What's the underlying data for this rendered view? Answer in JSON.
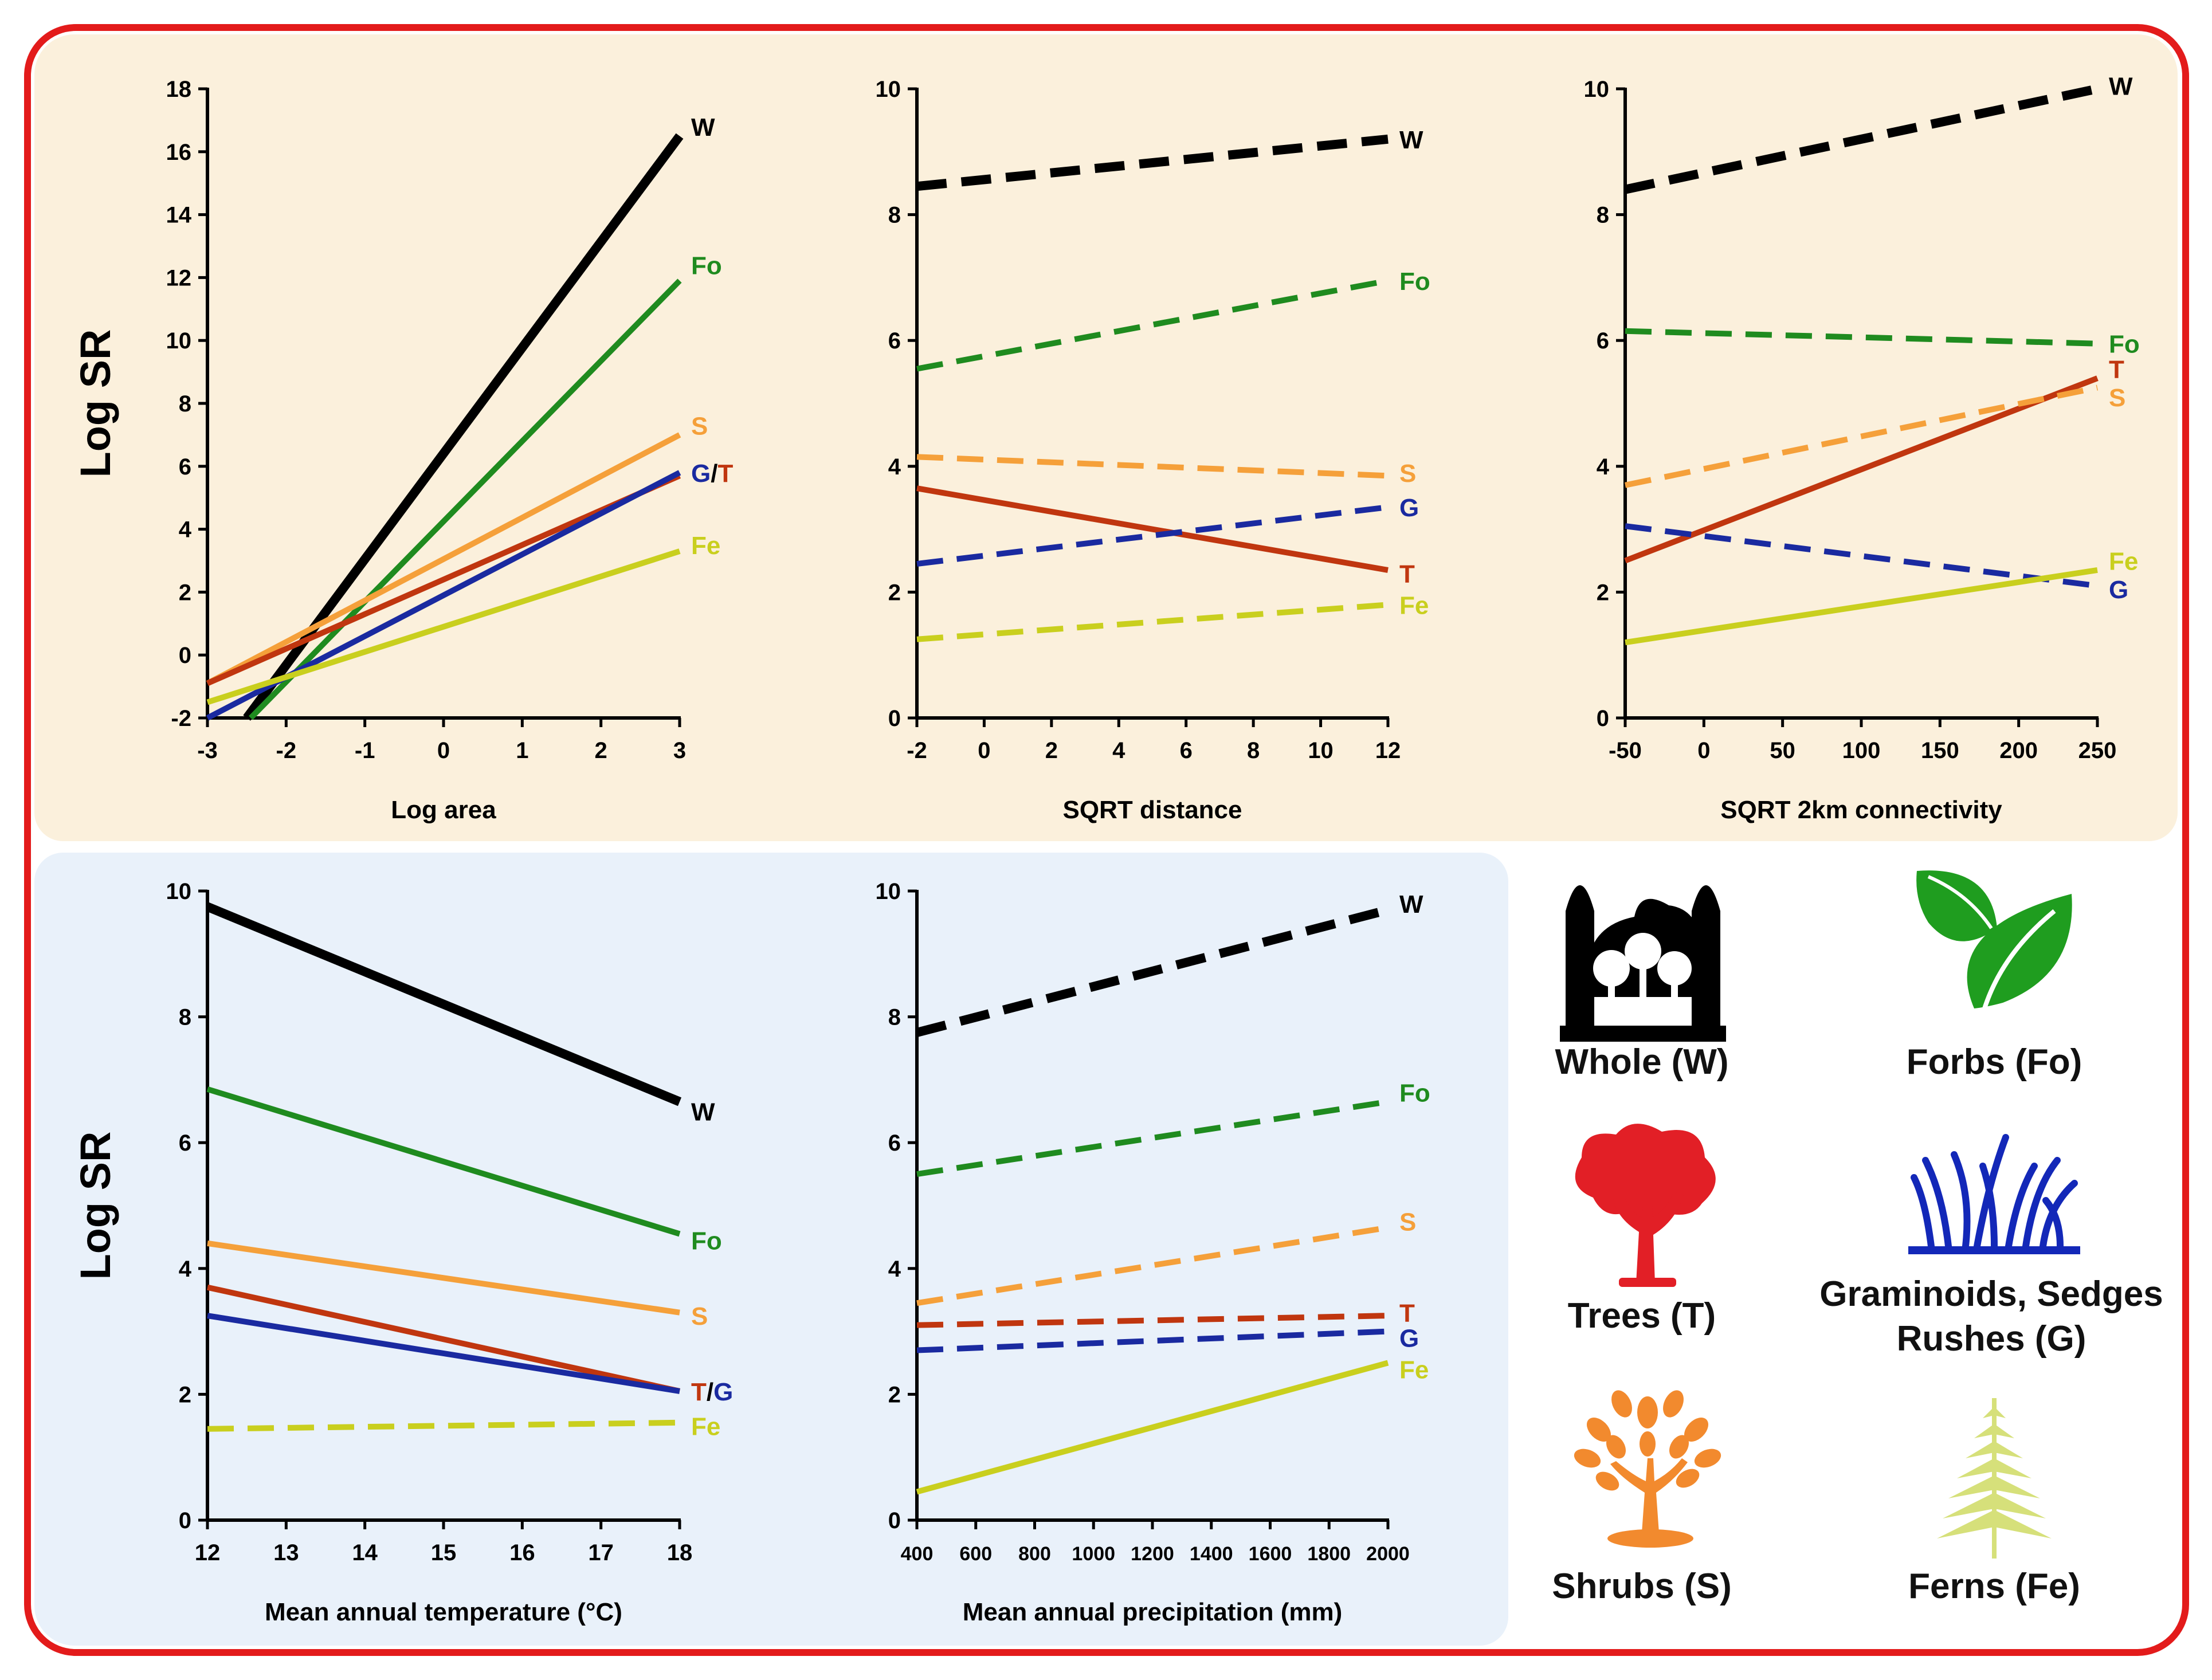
{
  "colors": {
    "W": "#000000",
    "Fo": "#1f8b1f",
    "S": "#f5a03a",
    "T": "#c0360f",
    "G": "#1a2aa0",
    "Fe": "#c9cf1e",
    "frame": "#e31b1b"
  },
  "chart_data": [
    {
      "type": "line",
      "panel": "top-left",
      "xlabel": "Log area",
      "ylabel": "Log SR",
      "xlim": [
        -3,
        3
      ],
      "ylim": [
        -2,
        18
      ],
      "xticks": [
        -3,
        -2,
        -1,
        0,
        1,
        2,
        3
      ],
      "yticks": [
        -2,
        0,
        2,
        4,
        6,
        8,
        10,
        12,
        14,
        16,
        18
      ],
      "series": [
        {
          "key": "W",
          "x": [
            -2.5,
            3
          ],
          "y": [
            -2,
            16.5
          ],
          "dashed": false
        },
        {
          "key": "Fo",
          "x": [
            -2.45,
            3
          ],
          "y": [
            -2,
            11.9
          ],
          "dashed": false
        },
        {
          "key": "S",
          "x": [
            -3,
            3
          ],
          "y": [
            -0.9,
            7.0
          ],
          "dashed": false
        },
        {
          "key": "T",
          "x": [
            -3,
            3
          ],
          "y": [
            -0.9,
            5.7
          ],
          "dashed": false
        },
        {
          "key": "G",
          "x": [
            -3,
            3
          ],
          "y": [
            -2,
            5.8
          ],
          "dashed": false
        },
        {
          "key": "Fe",
          "x": [
            -3,
            3
          ],
          "y": [
            -1.5,
            3.3
          ],
          "dashed": false
        }
      ],
      "labels": [
        {
          "parts": [
            {
              "t": "W",
              "c": "W"
            }
          ],
          "x": 3,
          "y": 16.8
        },
        {
          "parts": [
            {
              "t": "Fo",
              "c": "Fo"
            }
          ],
          "x": 3,
          "y": 12.4
        },
        {
          "parts": [
            {
              "t": "S",
              "c": "S"
            }
          ],
          "x": 3,
          "y": 7.3
        },
        {
          "parts": [
            {
              "t": "G",
              "c": "G"
            },
            {
              "t": "/",
              "c": "W"
            },
            {
              "t": "T",
              "c": "T"
            }
          ],
          "x": 3,
          "y": 5.8
        },
        {
          "parts": [
            {
              "t": "Fe",
              "c": "Fe"
            }
          ],
          "x": 3,
          "y": 3.5
        }
      ]
    },
    {
      "type": "line",
      "panel": "top-middle",
      "xlabel": "SQRT distance",
      "ylabel": "",
      "xlim": [
        -2,
        12
      ],
      "ylim": [
        0,
        10
      ],
      "xticks": [
        -2,
        0,
        2,
        4,
        6,
        8,
        10,
        12
      ],
      "yticks": [
        0,
        2,
        4,
        6,
        8,
        10
      ],
      "series": [
        {
          "key": "W",
          "x": [
            -2,
            12
          ],
          "y": [
            8.45,
            9.2
          ],
          "dashed": true
        },
        {
          "key": "Fo",
          "x": [
            -2,
            12
          ],
          "y": [
            5.55,
            6.95
          ],
          "dashed": true
        },
        {
          "key": "S",
          "x": [
            -2,
            12
          ],
          "y": [
            4.15,
            3.85
          ],
          "dashed": true
        },
        {
          "key": "T",
          "x": [
            -2,
            12
          ],
          "y": [
            3.65,
            2.35
          ],
          "dashed": false
        },
        {
          "key": "G",
          "x": [
            -2,
            12
          ],
          "y": [
            2.45,
            3.35
          ],
          "dashed": true
        },
        {
          "key": "Fe",
          "x": [
            -2,
            12
          ],
          "y": [
            1.25,
            1.8
          ],
          "dashed": true
        }
      ],
      "labels": [
        {
          "parts": [
            {
              "t": "W",
              "c": "W"
            }
          ],
          "x": 12,
          "y": 9.2
        },
        {
          "parts": [
            {
              "t": "Fo",
              "c": "Fo"
            }
          ],
          "x": 12,
          "y": 6.95
        },
        {
          "parts": [
            {
              "t": "S",
              "c": "S"
            }
          ],
          "x": 12,
          "y": 3.9
        },
        {
          "parts": [
            {
              "t": "G",
              "c": "G"
            }
          ],
          "x": 12,
          "y": 3.35
        },
        {
          "parts": [
            {
              "t": "T",
              "c": "T"
            }
          ],
          "x": 12,
          "y": 2.3
        },
        {
          "parts": [
            {
              "t": "Fe",
              "c": "Fe"
            }
          ],
          "x": 12,
          "y": 1.8
        }
      ]
    },
    {
      "type": "line",
      "panel": "top-right",
      "xlabel": "SQRT 2km connectivity",
      "ylabel": "",
      "xlim": [
        -50,
        250
      ],
      "ylim": [
        0,
        10
      ],
      "xticks": [
        -50,
        0,
        50,
        100,
        150,
        200,
        250
      ],
      "yticks": [
        0,
        2,
        4,
        6,
        8,
        10
      ],
      "series": [
        {
          "key": "W",
          "x": [
            -50,
            250
          ],
          "y": [
            8.4,
            10.0
          ],
          "dashed": true
        },
        {
          "key": "Fo",
          "x": [
            -50,
            250
          ],
          "y": [
            6.15,
            5.95
          ],
          "dashed": true
        },
        {
          "key": "T",
          "x": [
            -50,
            250
          ],
          "y": [
            2.5,
            5.4
          ],
          "dashed": false
        },
        {
          "key": "S",
          "x": [
            -50,
            250
          ],
          "y": [
            3.7,
            5.25
          ],
          "dashed": true
        },
        {
          "key": "G",
          "x": [
            -50,
            250
          ],
          "y": [
            3.05,
            2.1
          ],
          "dashed": true
        },
        {
          "key": "Fe",
          "x": [
            -50,
            250
          ],
          "y": [
            1.2,
            2.35
          ],
          "dashed": false
        }
      ],
      "labels": [
        {
          "parts": [
            {
              "t": "W",
              "c": "W"
            }
          ],
          "x": 250,
          "y": 10.05
        },
        {
          "parts": [
            {
              "t": "Fo",
              "c": "Fo"
            }
          ],
          "x": 250,
          "y": 5.95
        },
        {
          "parts": [
            {
              "t": "T",
              "c": "T"
            }
          ],
          "x": 250,
          "y": 5.55
        },
        {
          "parts": [
            {
              "t": "S",
              "c": "S"
            }
          ],
          "x": 250,
          "y": 5.1
        },
        {
          "parts": [
            {
              "t": "Fe",
              "c": "Fe"
            }
          ],
          "x": 250,
          "y": 2.5
        },
        {
          "parts": [
            {
              "t": "G",
              "c": "G"
            }
          ],
          "x": 250,
          "y": 2.05
        }
      ]
    },
    {
      "type": "line",
      "panel": "bottom-left",
      "xlabel": "Mean annual temperature (°C)",
      "ylabel": "Log SR",
      "xlim": [
        12,
        18
      ],
      "ylim": [
        0,
        10
      ],
      "xticks": [
        12,
        13,
        14,
        15,
        16,
        17,
        18
      ],
      "yticks": [
        0,
        2,
        4,
        6,
        8,
        10
      ],
      "series": [
        {
          "key": "W",
          "x": [
            12,
            18
          ],
          "y": [
            9.75,
            6.65
          ],
          "dashed": false
        },
        {
          "key": "Fo",
          "x": [
            12,
            18
          ],
          "y": [
            6.85,
            4.55
          ],
          "dashed": false
        },
        {
          "key": "S",
          "x": [
            12,
            18
          ],
          "y": [
            4.4,
            3.3
          ],
          "dashed": false
        },
        {
          "key": "T",
          "x": [
            12,
            18
          ],
          "y": [
            3.7,
            2.05
          ],
          "dashed": false
        },
        {
          "key": "G",
          "x": [
            12,
            18
          ],
          "y": [
            3.25,
            2.05
          ],
          "dashed": false
        },
        {
          "key": "Fe",
          "x": [
            12,
            18
          ],
          "y": [
            1.45,
            1.55
          ],
          "dashed": true
        }
      ],
      "labels": [
        {
          "parts": [
            {
              "t": "W",
              "c": "W"
            }
          ],
          "x": 18,
          "y": 6.5
        },
        {
          "parts": [
            {
              "t": "Fo",
              "c": "Fo"
            }
          ],
          "x": 18,
          "y": 4.45
        },
        {
          "parts": [
            {
              "t": "S",
              "c": "S"
            }
          ],
          "x": 18,
          "y": 3.25
        },
        {
          "parts": [
            {
              "t": "T",
              "c": "T"
            },
            {
              "t": "/",
              "c": "W"
            },
            {
              "t": "G",
              "c": "G"
            }
          ],
          "x": 18,
          "y": 2.05
        },
        {
          "parts": [
            {
              "t": "Fe",
              "c": "Fe"
            }
          ],
          "x": 18,
          "y": 1.5
        }
      ]
    },
    {
      "type": "line",
      "panel": "bottom-middle",
      "xlabel": "Mean annual precipitation (mm)",
      "ylabel": "",
      "xlim": [
        400,
        2000
      ],
      "ylim": [
        0,
        10
      ],
      "xticks": [
        400,
        600,
        800,
        1000,
        1200,
        1400,
        1600,
        1800,
        2000
      ],
      "yticks": [
        0,
        2,
        4,
        6,
        8,
        10
      ],
      "series": [
        {
          "key": "W",
          "x": [
            400,
            2000
          ],
          "y": [
            7.75,
            9.7
          ],
          "dashed": true
        },
        {
          "key": "Fo",
          "x": [
            400,
            2000
          ],
          "y": [
            5.5,
            6.65
          ],
          "dashed": true
        },
        {
          "key": "S",
          "x": [
            400,
            2000
          ],
          "y": [
            3.45,
            4.65
          ],
          "dashed": true
        },
        {
          "key": "T",
          "x": [
            400,
            2000
          ],
          "y": [
            3.1,
            3.25
          ],
          "dashed": true
        },
        {
          "key": "G",
          "x": [
            400,
            2000
          ],
          "y": [
            2.7,
            3.0
          ],
          "dashed": true
        },
        {
          "key": "Fe",
          "x": [
            400,
            2000
          ],
          "y": [
            0.45,
            2.5
          ],
          "dashed": false
        }
      ],
      "labels": [
        {
          "parts": [
            {
              "t": "W",
              "c": "W"
            }
          ],
          "x": 2000,
          "y": 9.8
        },
        {
          "parts": [
            {
              "t": "Fo",
              "c": "Fo"
            }
          ],
          "x": 2000,
          "y": 6.8
        },
        {
          "parts": [
            {
              "t": "S",
              "c": "S"
            }
          ],
          "x": 2000,
          "y": 4.75
        },
        {
          "parts": [
            {
              "t": "T",
              "c": "T"
            }
          ],
          "x": 2000,
          "y": 3.3
        },
        {
          "parts": [
            {
              "t": "G",
              "c": "G"
            }
          ],
          "x": 2000,
          "y": 2.9
        },
        {
          "parts": [
            {
              "t": "Fe",
              "c": "Fe"
            }
          ],
          "x": 2000,
          "y": 2.4
        }
      ]
    }
  ],
  "legend": {
    "whole": "Whole (W)",
    "forbs": "Forbs (Fo)",
    "trees": "Trees (T)",
    "graminoids_line1": "Graminoids, Sedges",
    "graminoids_line2": "Rushes (G)",
    "shrubs": "Shrubs (S)",
    "ferns": "Ferns (Fe)"
  },
  "icons": {
    "whole": "forest-icon",
    "forbs": "leaf-icon",
    "trees": "tree-icon",
    "graminoids": "grass-icon",
    "shrubs": "shrub-icon",
    "ferns": "fern-icon"
  }
}
